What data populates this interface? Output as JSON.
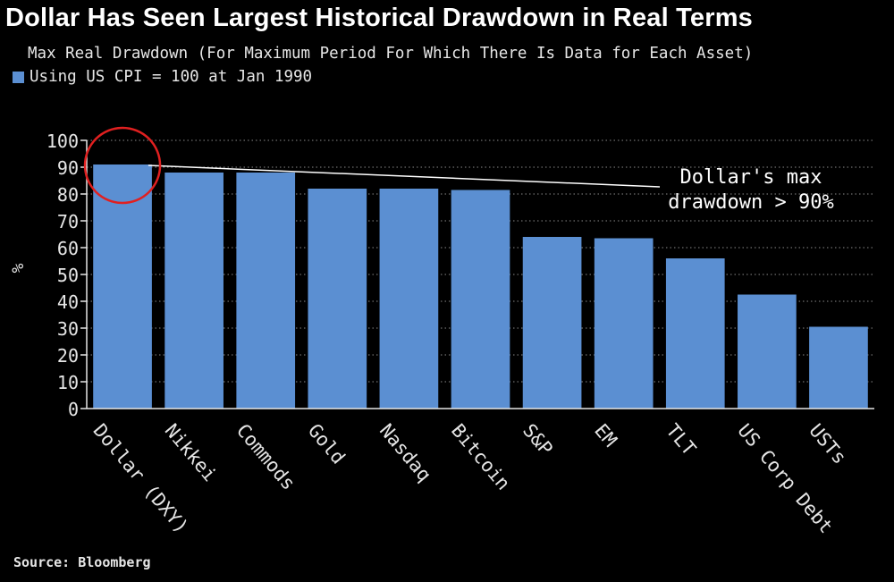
{
  "chart_data": {
    "type": "bar",
    "title": "Dollar Has Seen Largest Historical Drawdown in Real Terms",
    "subtitle": "Max Real Drawdown (For Maximum Period For Which There Is Data for Each Asset)",
    "ylabel": "%",
    "xlabel": "",
    "ylim": [
      0,
      100
    ],
    "yticks": [
      0,
      10,
      20,
      30,
      40,
      50,
      60,
      70,
      80,
      90,
      100
    ],
    "grid": true,
    "legend_position": "top-left",
    "categories": [
      "Dollar (DXY)",
      "Nikkei",
      "Commods",
      "Gold",
      "Nasdaq",
      "Bitcoin",
      "S&P",
      "EM",
      "TLT",
      "US Corp Debt",
      "USTs"
    ],
    "series": [
      {
        "name": "Using US CPI = 100 at Jan 1990",
        "color": "#5b8fd2",
        "values": [
          91,
          88,
          88,
          82,
          82,
          81.5,
          64,
          63.5,
          56,
          42.5,
          30.5
        ]
      }
    ],
    "annotation": {
      "text_lines": [
        "Dollar's max",
        "drawdown > 90%"
      ],
      "target_category": "Dollar (DXY)"
    },
    "source": "Source: Bloomberg"
  }
}
